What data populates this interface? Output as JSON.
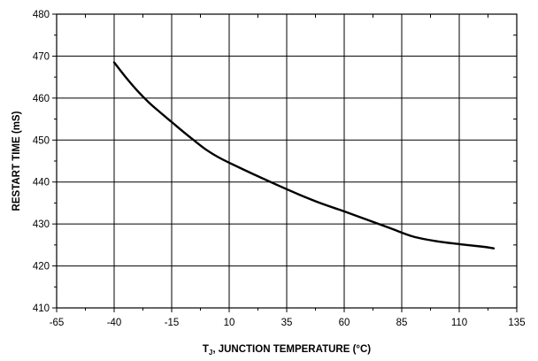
{
  "chart_data": {
    "type": "line",
    "xlabel_main": "T",
    "xlabel_sub": "J",
    "xlabel_rest": ", JUNCTION TEMPERATURE (°C)",
    "ylabel": "RESTART TIME (mS)",
    "xlim": [
      -65,
      135
    ],
    "ylim": [
      410,
      480
    ],
    "x_ticks": [
      -65,
      -40,
      -15,
      10,
      35,
      60,
      85,
      110,
      135
    ],
    "y_ticks": [
      410,
      420,
      430,
      440,
      450,
      460,
      470,
      480
    ],
    "grid": true,
    "series": [
      {
        "x": [
          -40,
          -35,
          -30,
          -25,
          -20,
          -15,
          -10,
          -5,
          0,
          5,
          10,
          20,
          30,
          40,
          50,
          60,
          70,
          80,
          90,
          100,
          110,
          120,
          125
        ],
        "y": [
          468.5,
          465.0,
          461.8,
          459.0,
          456.6,
          454.3,
          452.0,
          449.8,
          447.7,
          446.0,
          444.6,
          442.0,
          439.5,
          437.1,
          434.9,
          433.0,
          431.0,
          429.0,
          427.0,
          425.9,
          425.2,
          424.6,
          424.2
        ]
      }
    ]
  }
}
